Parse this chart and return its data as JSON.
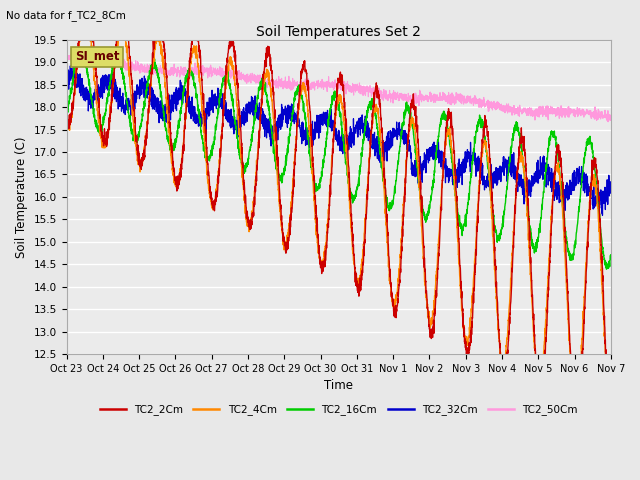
{
  "title": "Soil Temperatures Set 2",
  "subtitle": "No data for f_TC2_8Cm",
  "ylabel": "Soil Temperature (C)",
  "xlabel": "Time",
  "ylim": [
    12.5,
    19.5
  ],
  "yticks": [
    12.5,
    13.0,
    13.5,
    14.0,
    14.5,
    15.0,
    15.5,
    16.0,
    16.5,
    17.0,
    17.5,
    18.0,
    18.5,
    19.0,
    19.5
  ],
  "xtick_labels": [
    "Oct 23",
    "Oct 24",
    "Oct 25",
    "Oct 26",
    "Oct 27",
    "Oct 28",
    "Oct 29",
    "Oct 30",
    "Oct 31",
    "Nov 1",
    "Nov 2",
    "Nov 3",
    "Nov 4",
    "Nov 5",
    "Nov 6",
    "Nov 7"
  ],
  "legend_labels": [
    "TC2_2Cm",
    "TC2_4Cm",
    "TC2_16Cm",
    "TC2_32Cm",
    "TC2_50Cm"
  ],
  "line_colors": [
    "#cc0000",
    "#ff8800",
    "#00cc00",
    "#0000cc",
    "#ff99dd"
  ],
  "annotation_text": "SI_met",
  "bg_color": "#e8e8e8",
  "plot_bg_color": "#ebebeb"
}
